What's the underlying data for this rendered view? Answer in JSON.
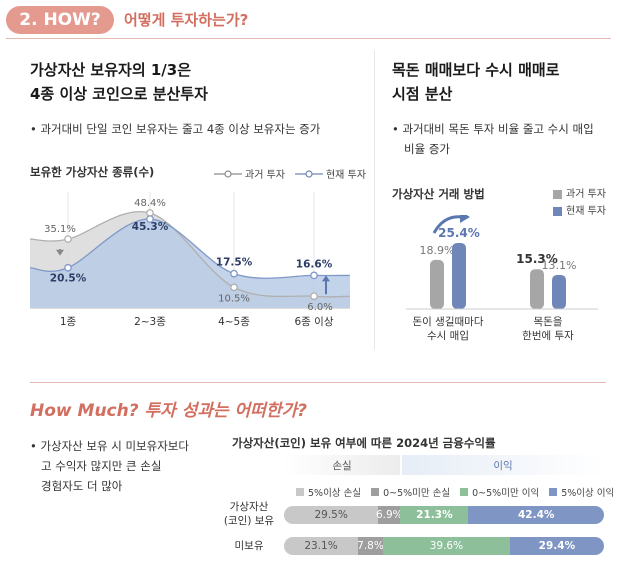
{
  "header": {
    "badge": "2. HOW?",
    "title": "어떻게 투자하는가?"
  },
  "left": {
    "heading_line1": "가상자산 보유자의 1/3은",
    "heading_line2": "4종 이상 코인으로 분산투자",
    "bullet": "• 과거대비 단일 코인 보유자는 줄고 4종 이상 보유자는 증가",
    "chart_title": "보유한 가상자산 종류(수)",
    "legend_past": "과거 투자",
    "legend_now": "현재 투자"
  },
  "right": {
    "heading_line1": "목돈 매매보다 수시 매매로",
    "heading_line2": "시점 분산",
    "bullet_line1": "• 과거대비 목돈 투자 비율 줄고 수시 매입",
    "bullet_line2": "비율 증가",
    "chart_title": "가상자산 거래 방법",
    "legend_past": "과거 투자",
    "legend_now": "현재 투자"
  },
  "bottom": {
    "title": "How Much? 투자 성과는 어떠한가?",
    "bullet_line1": "• 가상자산 보유 시 미보유자보다",
    "bullet_line2": "고 수익자 많지만 큰 손실",
    "bullet_line3": "경험자도 더 많아",
    "chart_title": "가상자산(코인) 보유 여부에 따른 2024년 금융수익률",
    "loss_label": "손실",
    "gain_label": "이익"
  },
  "colors": {
    "accent": "#d36f60",
    "past": "#a6a6a6",
    "now": "#6e86b8",
    "now_dark": "#5b77b0"
  },
  "chart_data": [
    {
      "type": "line",
      "title": "보유한 가상자산 종류(수)",
      "categories": [
        "1종",
        "2~3종",
        "4~5종",
        "6종 이상"
      ],
      "series": [
        {
          "name": "과거 투자",
          "values": [
            35.1,
            48.4,
            10.5,
            6.0
          ],
          "labels": [
            "35.1%",
            "48.4%",
            "10.5%",
            "6.0%"
          ]
        },
        {
          "name": "현재 투자",
          "values": [
            20.5,
            45.3,
            17.5,
            16.6
          ],
          "labels": [
            "20.5%",
            "45.3%",
            "17.5%",
            "16.6%"
          ]
        }
      ],
      "ylim": [
        0,
        55
      ]
    },
    {
      "type": "bar",
      "title": "가상자산 거래 방법",
      "categories": [
        "돈이 생길때마다 수시 매입",
        "목돈을 한번에 투자"
      ],
      "category_lines": [
        [
          "돈이 생길때마다",
          "수시 매입"
        ],
        [
          "목돈을",
          "한번에 투자"
        ]
      ],
      "series": [
        {
          "name": "과거 투자",
          "values": [
            18.9,
            15.3
          ],
          "labels": [
            "18.9%",
            "15.3%"
          ]
        },
        {
          "name": "현재 투자",
          "values": [
            25.4,
            13.1
          ],
          "labels": [
            "25.4%",
            "13.1%"
          ]
        }
      ],
      "ylim": [
        0,
        30
      ]
    },
    {
      "type": "bar",
      "orientation": "horizontal-stacked",
      "title": "가상자산(코인) 보유 여부에 따른 2024년 금융수익률",
      "legend": [
        "5%이상 손실",
        "0~5%미만 손실",
        "0~5%미만 이익",
        "5%이상 이익"
      ],
      "rows": [
        {
          "label_line1": "가상자산",
          "label_line2": "(코인) 보유",
          "values": [
            29.5,
            6.9,
            21.3,
            42.4
          ],
          "labels": [
            "29.5%",
            "6.9%",
            "21.3%",
            "42.4%"
          ]
        },
        {
          "label_line1": "미보유",
          "label_line2": "",
          "values": [
            23.1,
            7.8,
            39.6,
            29.4
          ],
          "labels": [
            "23.1%",
            "7.8%",
            "39.6%",
            "29.4%"
          ]
        }
      ],
      "segment_colors": [
        "#c8c8c8",
        "#9e9e9e",
        "#8dbf9b",
        "#7f95c4"
      ]
    }
  ]
}
